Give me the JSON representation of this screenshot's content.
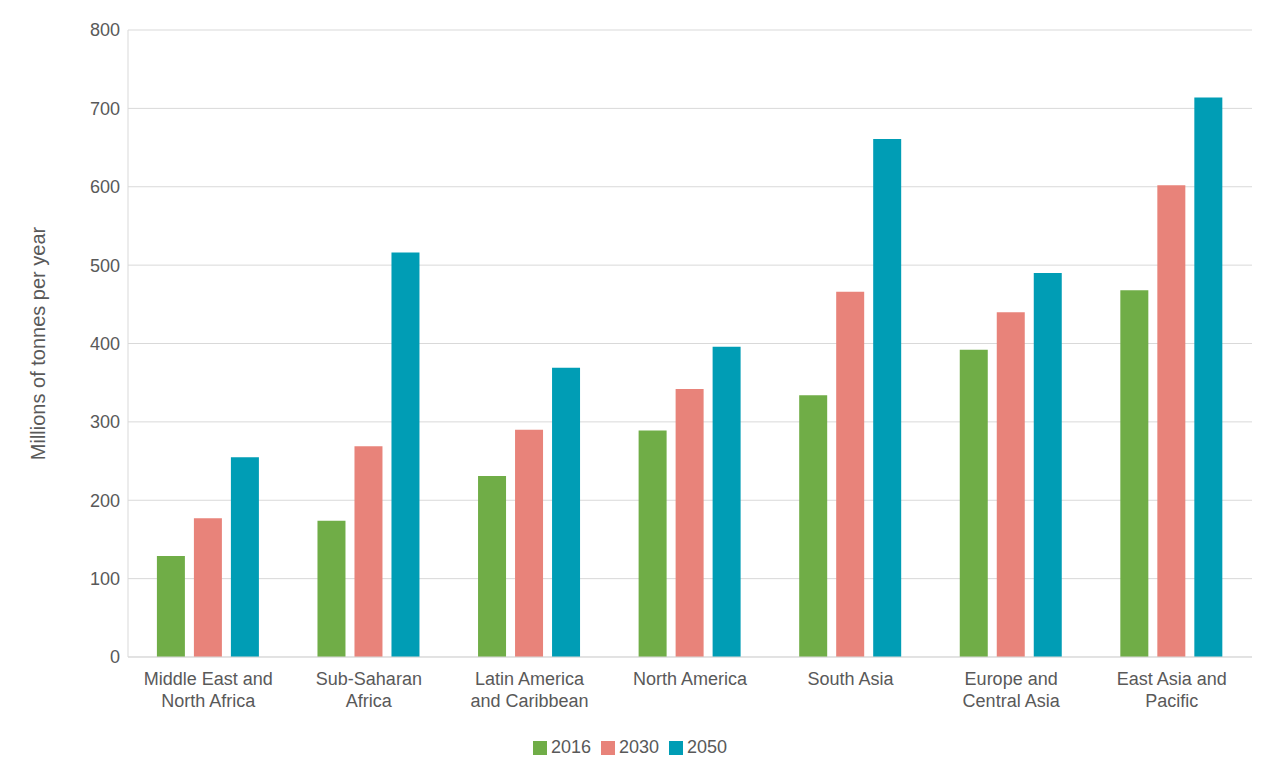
{
  "chart_data": {
    "type": "bar",
    "y_label": "Millions of tonnes per year",
    "categories": [
      "Middle East and North Africa",
      "Sub-Saharan Africa",
      "Latin America and Caribbean",
      "North America",
      "South Asia",
      "Europe and Central Asia",
      "East Asia and Pacific"
    ],
    "series": [
      {
        "name": "2016",
        "color": "#70ad47",
        "values": [
          129,
          174,
          231,
          289,
          334,
          392,
          468
        ]
      },
      {
        "name": "2030",
        "color": "#e8837a",
        "values": [
          177,
          269,
          290,
          342,
          466,
          440,
          602
        ]
      },
      {
        "name": "2050",
        "color": "#009db5",
        "values": [
          255,
          516,
          369,
          396,
          661,
          490,
          714
        ]
      }
    ],
    "ylim": [
      0,
      800
    ],
    "yticks": [
      0,
      100,
      200,
      300,
      400,
      500,
      600,
      700,
      800
    ],
    "grid": true,
    "legend": "bottom"
  }
}
